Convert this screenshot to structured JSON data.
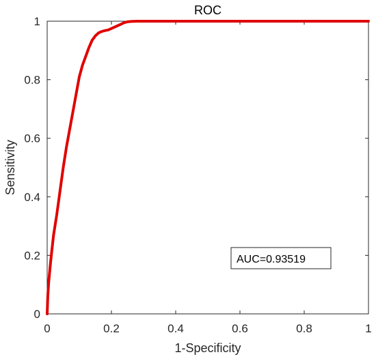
{
  "chart_data": {
    "type": "line",
    "title": "ROC",
    "xlabel": "1-Specificity",
    "ylabel": "Sensitivity",
    "xlim": [
      0,
      1
    ],
    "ylim": [
      0,
      1
    ],
    "xticks": [
      "0",
      "0.2",
      "0.4",
      "0.6",
      "0.8",
      "1"
    ],
    "yticks": [
      "0",
      "0.2",
      "0.4",
      "0.6",
      "0.8",
      "1"
    ],
    "grid": false,
    "annotation": "AUC=0.93519",
    "series": [
      {
        "color": "#e00000",
        "x": [
          0,
          0.002,
          0.005,
          0.01,
          0.015,
          0.02,
          0.03,
          0.04,
          0.05,
          0.06,
          0.07,
          0.08,
          0.09,
          0.1,
          0.11,
          0.12,
          0.13,
          0.14,
          0.15,
          0.16,
          0.17,
          0.18,
          0.19,
          0.2,
          0.21,
          0.22,
          0.23,
          0.24,
          0.25,
          0.26,
          0.28,
          0.3,
          0.4,
          0.5,
          0.6,
          0.7,
          0.8,
          0.9,
          1.0
        ],
        "y": [
          0,
          0.06,
          0.11,
          0.17,
          0.22,
          0.27,
          0.34,
          0.42,
          0.5,
          0.57,
          0.63,
          0.69,
          0.75,
          0.81,
          0.85,
          0.88,
          0.91,
          0.935,
          0.95,
          0.96,
          0.965,
          0.968,
          0.97,
          0.975,
          0.98,
          0.985,
          0.99,
          0.995,
          0.998,
          0.999,
          1.0,
          1.0,
          1.0,
          1.0,
          1.0,
          1.0,
          1.0,
          1.0,
          1.0
        ]
      }
    ]
  }
}
